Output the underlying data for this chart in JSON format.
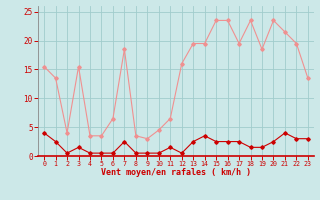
{
  "hours": [
    0,
    1,
    2,
    3,
    4,
    5,
    6,
    7,
    8,
    9,
    10,
    11,
    12,
    13,
    14,
    15,
    16,
    17,
    18,
    19,
    20,
    21,
    22,
    23
  ],
  "rafales": [
    15.5,
    13.5,
    4.0,
    15.5,
    3.5,
    3.5,
    6.5,
    18.5,
    3.5,
    3.0,
    4.5,
    6.5,
    16.0,
    19.5,
    19.5,
    23.5,
    23.5,
    19.5,
    23.5,
    18.5,
    23.5,
    21.5,
    19.5,
    13.5
  ],
  "moyen": [
    4.0,
    2.5,
    0.5,
    1.5,
    0.5,
    0.5,
    0.5,
    2.5,
    0.5,
    0.5,
    0.5,
    1.5,
    0.5,
    2.5,
    3.5,
    2.5,
    2.5,
    2.5,
    1.5,
    1.5,
    2.5,
    4.0,
    3.0,
    3.0
  ],
  "bg_color": "#cce8e8",
  "grid_color": "#a0cccc",
  "line_color_rafales": "#f09090",
  "line_color_moyen": "#cc0000",
  "xlabel": "Vent moyen/en rafales ( km/h )",
  "ylim": [
    0,
    26
  ],
  "yticks": [
    0,
    5,
    10,
    15,
    20,
    25
  ],
  "xlim": [
    -0.5,
    23.5
  ]
}
